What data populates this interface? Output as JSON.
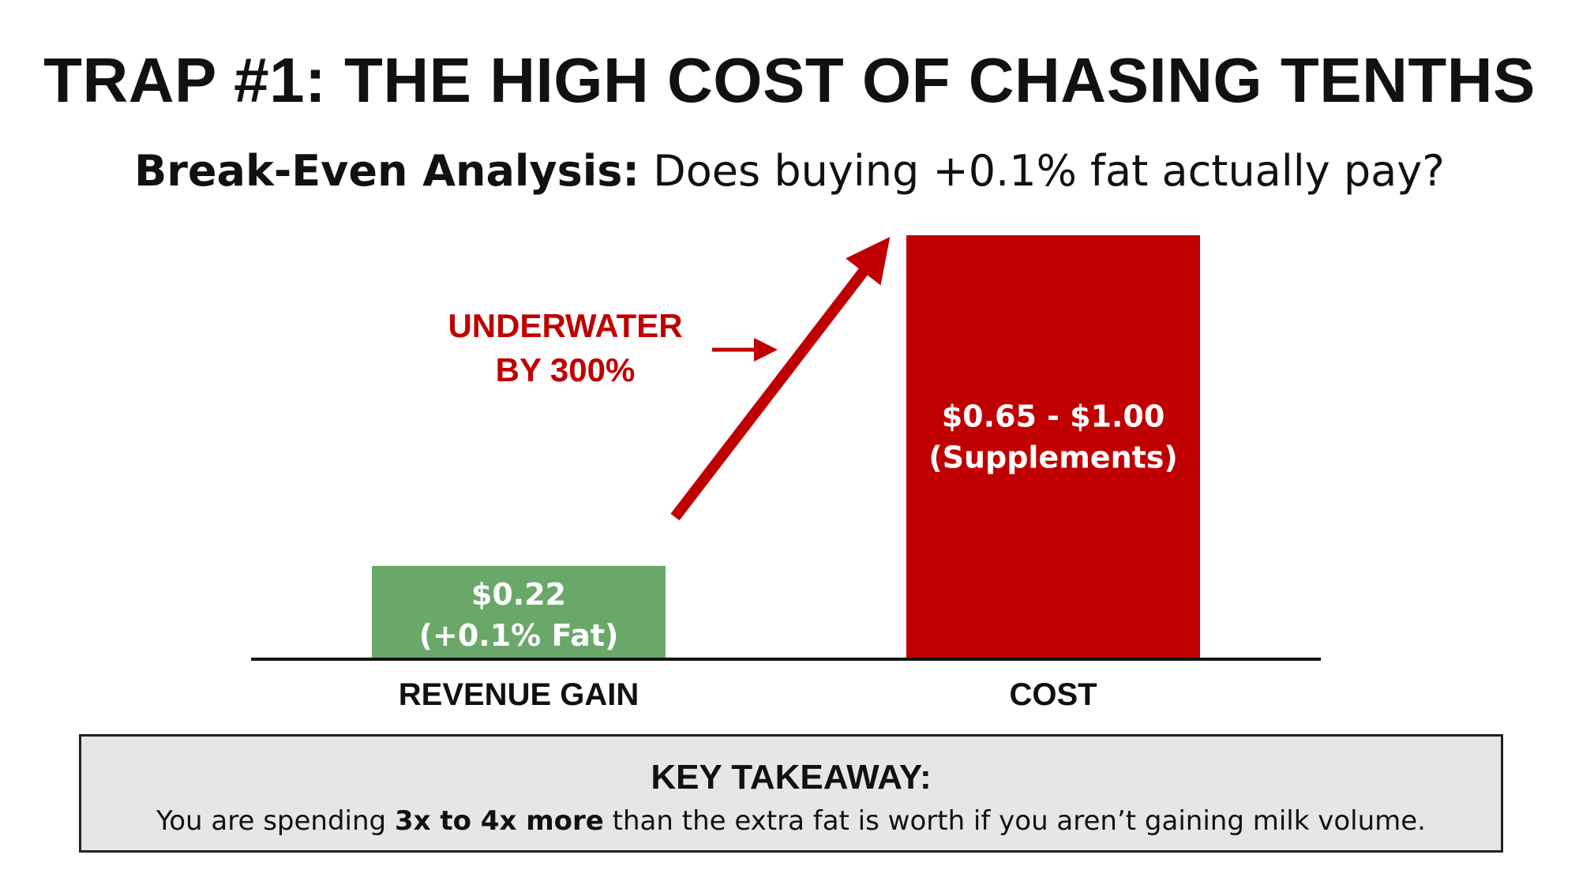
{
  "title": "TRAP #1: THE HIGH COST OF CHASING TENTHS",
  "subtitle": {
    "bold": "Break-Even Analysis:",
    "rest": " Does buying +0.1% fat actually pay?"
  },
  "chart_data": {
    "type": "bar",
    "categories": [
      "REVENUE GAIN",
      "COST"
    ],
    "values": [
      0.22,
      0.65
    ],
    "cost_range": [
      0.65,
      1.0
    ],
    "bar_labels": [
      [
        "$0.22",
        "(+0.1% Fat)"
      ],
      [
        "$0.65 - $1.00",
        "(Supplements)"
      ]
    ],
    "colors": [
      "#6aa86a",
      "#c00000"
    ],
    "annotation": [
      "UNDERWATER",
      "BY 300%"
    ],
    "annotation_color": "#c00000",
    "ylim": [
      0,
      1.0
    ]
  },
  "takeaway": {
    "title": "KEY TAKEAWAY:",
    "text_before": "You are spending ",
    "text_bold": "3x to 4x more",
    "text_after": " than the extra fat is worth if you aren’t gaining milk volume."
  }
}
